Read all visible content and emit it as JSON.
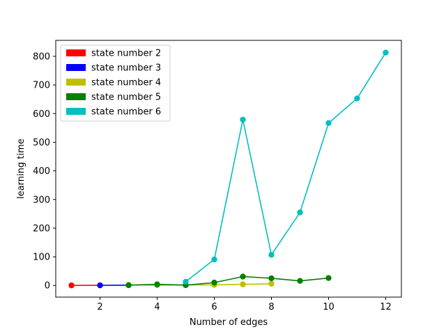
{
  "chart_data": {
    "type": "line",
    "title": "",
    "xlabel": "Number of edges",
    "ylabel": "learning time",
    "xlim": [
      0.45,
      12.55
    ],
    "ylim": [
      -40.7,
      855.7
    ],
    "xticks": [
      2,
      4,
      6,
      8,
      10,
      12
    ],
    "yticks": [
      0,
      100,
      200,
      300,
      400,
      500,
      600,
      700,
      800
    ],
    "grid": false,
    "legend_position": "upper-left",
    "series": [
      {
        "name": "state number 2",
        "color": "#ff0000",
        "x": [
          1,
          2
        ],
        "y": [
          0.3,
          0.5
        ]
      },
      {
        "name": "state number 3",
        "color": "#0000ff",
        "x": [
          2,
          3
        ],
        "y": [
          0.5,
          1.0
        ]
      },
      {
        "name": "state number 4",
        "color": "#bfbf00",
        "x": [
          3,
          4,
          5,
          6,
          7,
          8
        ],
        "y": [
          2.0,
          1.0,
          2.0,
          2.0,
          4.0,
          6.0
        ]
      },
      {
        "name": "state number 5",
        "color": "#008000",
        "x": [
          3,
          4,
          5,
          6,
          7,
          8,
          9,
          10
        ],
        "y": [
          1.0,
          4.0,
          1.0,
          10.0,
          31.0,
          25.0,
          16.0,
          26.0
        ]
      },
      {
        "name": "state number 6",
        "color": "#00bfbf",
        "x": [
          5,
          6,
          7,
          8,
          9,
          10,
          11,
          12
        ],
        "y": [
          13.0,
          91.0,
          579.0,
          107.0,
          255.0,
          567.0,
          653.0,
          813.0
        ]
      }
    ]
  }
}
